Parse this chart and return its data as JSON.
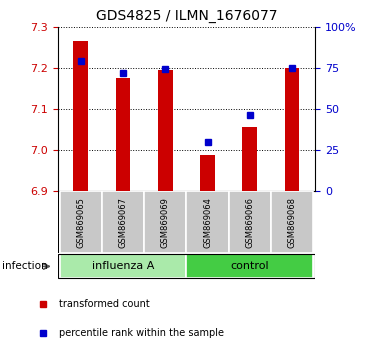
{
  "title": "GDS4825 / ILMN_1676077",
  "samples": [
    "GSM869065",
    "GSM869067",
    "GSM869069",
    "GSM869064",
    "GSM869066",
    "GSM869068"
  ],
  "group_labels": [
    "influenza A",
    "control"
  ],
  "group_label": "infection",
  "red_values": [
    7.265,
    7.175,
    7.195,
    6.988,
    7.055,
    7.2
  ],
  "blue_values_pct": [
    79,
    72,
    74,
    30,
    46,
    75
  ],
  "ylim": [
    6.9,
    7.3
  ],
  "yticks": [
    6.9,
    7.0,
    7.1,
    7.2,
    7.3
  ],
  "y2lim": [
    0,
    100
  ],
  "y2ticks": [
    0,
    25,
    50,
    75,
    100
  ],
  "y2ticklabels": [
    "0",
    "25",
    "50",
    "75",
    "100%"
  ],
  "bar_color": "#cc0000",
  "dot_color": "#0000cc",
  "bar_bottom": 6.9,
  "influenza_color": "#aaeaaa",
  "control_color": "#44cc44",
  "sample_bg_color": "#c8c8c8",
  "legend_red_label": "transformed count",
  "legend_blue_label": "percentile rank within the sample",
  "title_fontsize": 10,
  "tick_fontsize": 8,
  "bar_width": 0.35
}
